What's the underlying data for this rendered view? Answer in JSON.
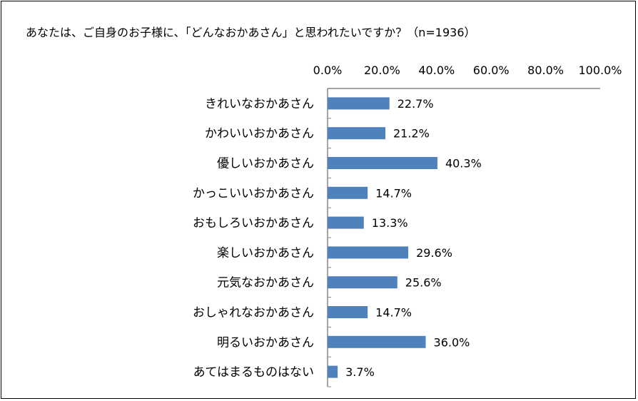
{
  "chart_data": {
    "type": "bar",
    "orientation": "horizontal",
    "title": "あなたは、ご自身のお子様に、「どんなおかあさん」と思われたいですか？（n=1936）",
    "categories": [
      "きれいなおかあさん",
      "かわいいおかあさん",
      "優しいおかあさん",
      "かっこいいおかあさん",
      "おもしろいおかあさん",
      "楽しいおかあさん",
      "元気なおかあさん",
      "おしゃれなおかあさん",
      "明るいおかあさん",
      "あてはまるものはない"
    ],
    "values": [
      22.7,
      21.2,
      40.3,
      14.7,
      13.3,
      29.6,
      25.6,
      14.7,
      36.0,
      3.7
    ],
    "value_labels": [
      "22.7%",
      "21.2%",
      "40.3%",
      "14.7%",
      "13.3%",
      "29.6%",
      "25.6%",
      "14.7%",
      "36.0%",
      "3.7%"
    ],
    "x_ticks": [
      "0.0%",
      "20.0%",
      "40.0%",
      "60.0%",
      "80.0%",
      "100.0%"
    ],
    "xlim": [
      0,
      100
    ],
    "axis_position": "top",
    "grid": false,
    "bar_color": "#4f81bd"
  }
}
